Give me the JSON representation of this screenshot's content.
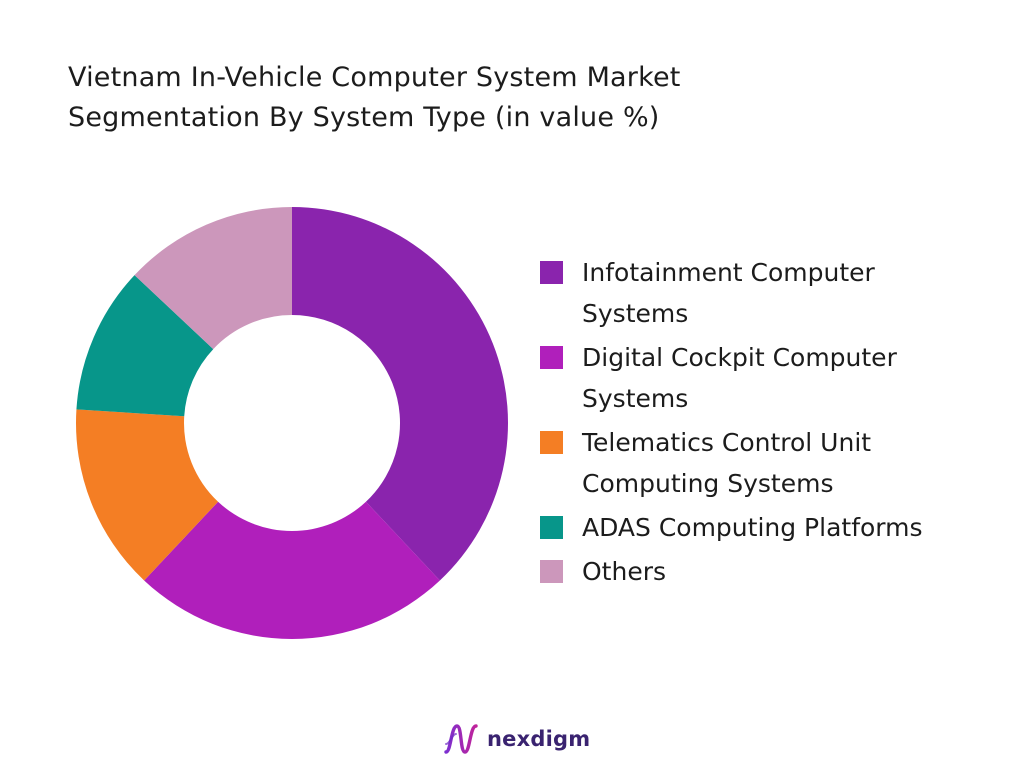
{
  "chart_data": {
    "type": "pie",
    "title": [
      "Vietnam In-Vehicle Computer System Market",
      "Segmentation By System Type (in value %)"
    ],
    "categories": [
      "Infotainment Computer Systems",
      "Digital Cockpit Computer Systems",
      "Telematics Control Unit Computing Systems",
      "ADAS Computing Platforms",
      "Others"
    ],
    "values": [
      38,
      24,
      14,
      11,
      13
    ],
    "colors": [
      "#8a24ad",
      "#b01fbb",
      "#f47e24",
      "#07968a",
      "#cc97bb"
    ],
    "donut": true,
    "legend_position": "right"
  },
  "logo": {
    "text": "nexdigm"
  }
}
